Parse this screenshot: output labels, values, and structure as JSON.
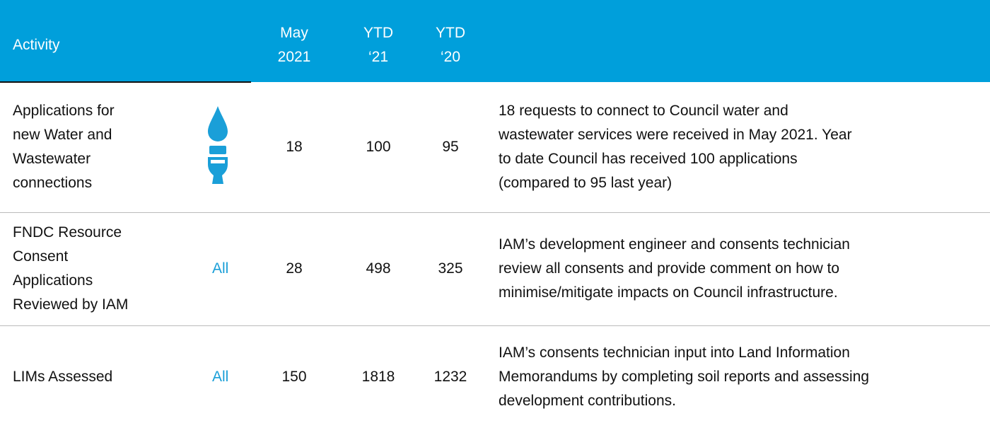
{
  "table": {
    "header": [
      [
        "Activity"
      ],
      [
        "May",
        "2021"
      ],
      [
        "YTD",
        "‘21"
      ],
      [
        "YTD",
        "‘20"
      ]
    ],
    "rows": [
      {
        "activity": [
          "Applications for",
          "new Water and",
          "Wastewater",
          "connections"
        ],
        "scope": null,
        "may_2021": 18,
        "ytd_21": 100,
        "ytd_20": 95,
        "description": [
          "18 requests to connect to Council water and",
          "wastewater services were received in May 2021.  Year",
          "to date Council has received 100 applications",
          "(compared to 95 last year)"
        ]
      },
      {
        "activity": [
          "FNDC Resource",
          "Consent",
          "Applications",
          "Reviewed by IAM"
        ],
        "scope": "All",
        "may_2021": 28,
        "ytd_21": 498,
        "ytd_20": 325,
        "description": [
          "IAM’s development engineer and consents technician",
          "review all consents and provide comment on how to",
          "minimise/mitigate impacts on Council infrastructure."
        ]
      },
      {
        "activity": [
          "LIMs Assessed"
        ],
        "scope": "All",
        "may_2021": 150,
        "ytd_21": 1818,
        "ytd_20": 1232,
        "description": [
          "IAM’s consents technician input into Land Information",
          "Memorandums by completing soil reports and assessing",
          "development contributions."
        ]
      }
    ]
  }
}
